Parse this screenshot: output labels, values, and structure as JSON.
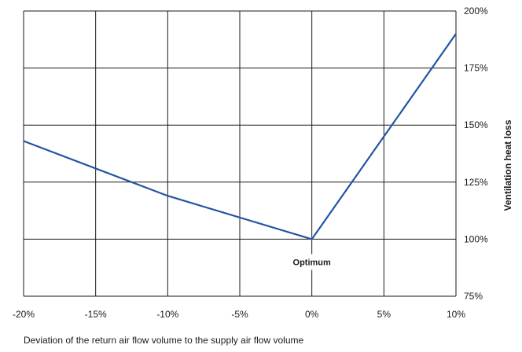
{
  "chart_data": {
    "type": "line",
    "title": "",
    "xlabel": "Deviation of the return air flow volume to the supply air flow volume",
    "ylabel": "Ventilation heat loss",
    "xlim": [
      -20,
      10
    ],
    "ylim": [
      75,
      200
    ],
    "x_ticks": [
      "-20%",
      "-15%",
      "-10%",
      "-5%",
      "0%",
      "5%",
      "10%"
    ],
    "y_ticks": [
      "75%",
      "100%",
      "125%",
      "150%",
      "175%",
      "200%"
    ],
    "x_tick_values": [
      -20,
      -15,
      -10,
      -5,
      0,
      5,
      10
    ],
    "y_tick_values": [
      75,
      100,
      125,
      150,
      175,
      200
    ],
    "grid": true,
    "series": [
      {
        "color": "#2354a1",
        "x": [
          -20,
          -10,
          0,
          10
        ],
        "y": [
          143,
          119,
          100,
          190
        ]
      }
    ],
    "annotations": [
      {
        "text": "Optimum",
        "x": 0,
        "y": 90
      }
    ]
  }
}
